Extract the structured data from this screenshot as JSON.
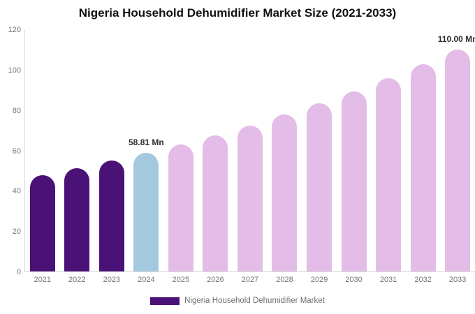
{
  "title": "Nigeria Household Dehumidifier Market Size (2021-2033)",
  "legend": {
    "label": "Nigeria Household Dehumidifier Market",
    "swatch_color": "#4A1277"
  },
  "colors": {
    "historical": "#4A1277",
    "base_year": "#A3C9DF",
    "forecast": "#E4BCE8",
    "axis_line": "#d9d9d9",
    "tick_text": "#757575",
    "annotation_text": "#2e2e2e",
    "legend_text": "#6e6e6e",
    "title_text": "#111111",
    "background": "#ffffff"
  },
  "chart_data": {
    "type": "bar",
    "title": "Nigeria Household Dehumidifier Market Size (2021-2033)",
    "xlabel": "",
    "ylabel": "",
    "unit": "Mn",
    "ylim": [
      0,
      120
    ],
    "yticks": [
      0,
      20,
      40,
      60,
      80,
      100,
      120
    ],
    "grid": false,
    "legend_position": "bottom",
    "categories": [
      "2021",
      "2022",
      "2023",
      "2024",
      "2025",
      "2026",
      "2027",
      "2028",
      "2029",
      "2030",
      "2031",
      "2032",
      "2033"
    ],
    "values": [
      47.7,
      51.2,
      54.9,
      58.81,
      63.0,
      67.6,
      72.4,
      77.7,
      83.3,
      89.3,
      95.7,
      102.6,
      110.0
    ],
    "bar_roles": [
      "historical",
      "historical",
      "historical",
      "base_year",
      "forecast",
      "forecast",
      "forecast",
      "forecast",
      "forecast",
      "forecast",
      "forecast",
      "forecast",
      "forecast"
    ],
    "annotations": [
      {
        "category": "2024",
        "text": "58.81 Mn"
      },
      {
        "category": "2033",
        "text": "110.00 Mn"
      }
    ]
  }
}
